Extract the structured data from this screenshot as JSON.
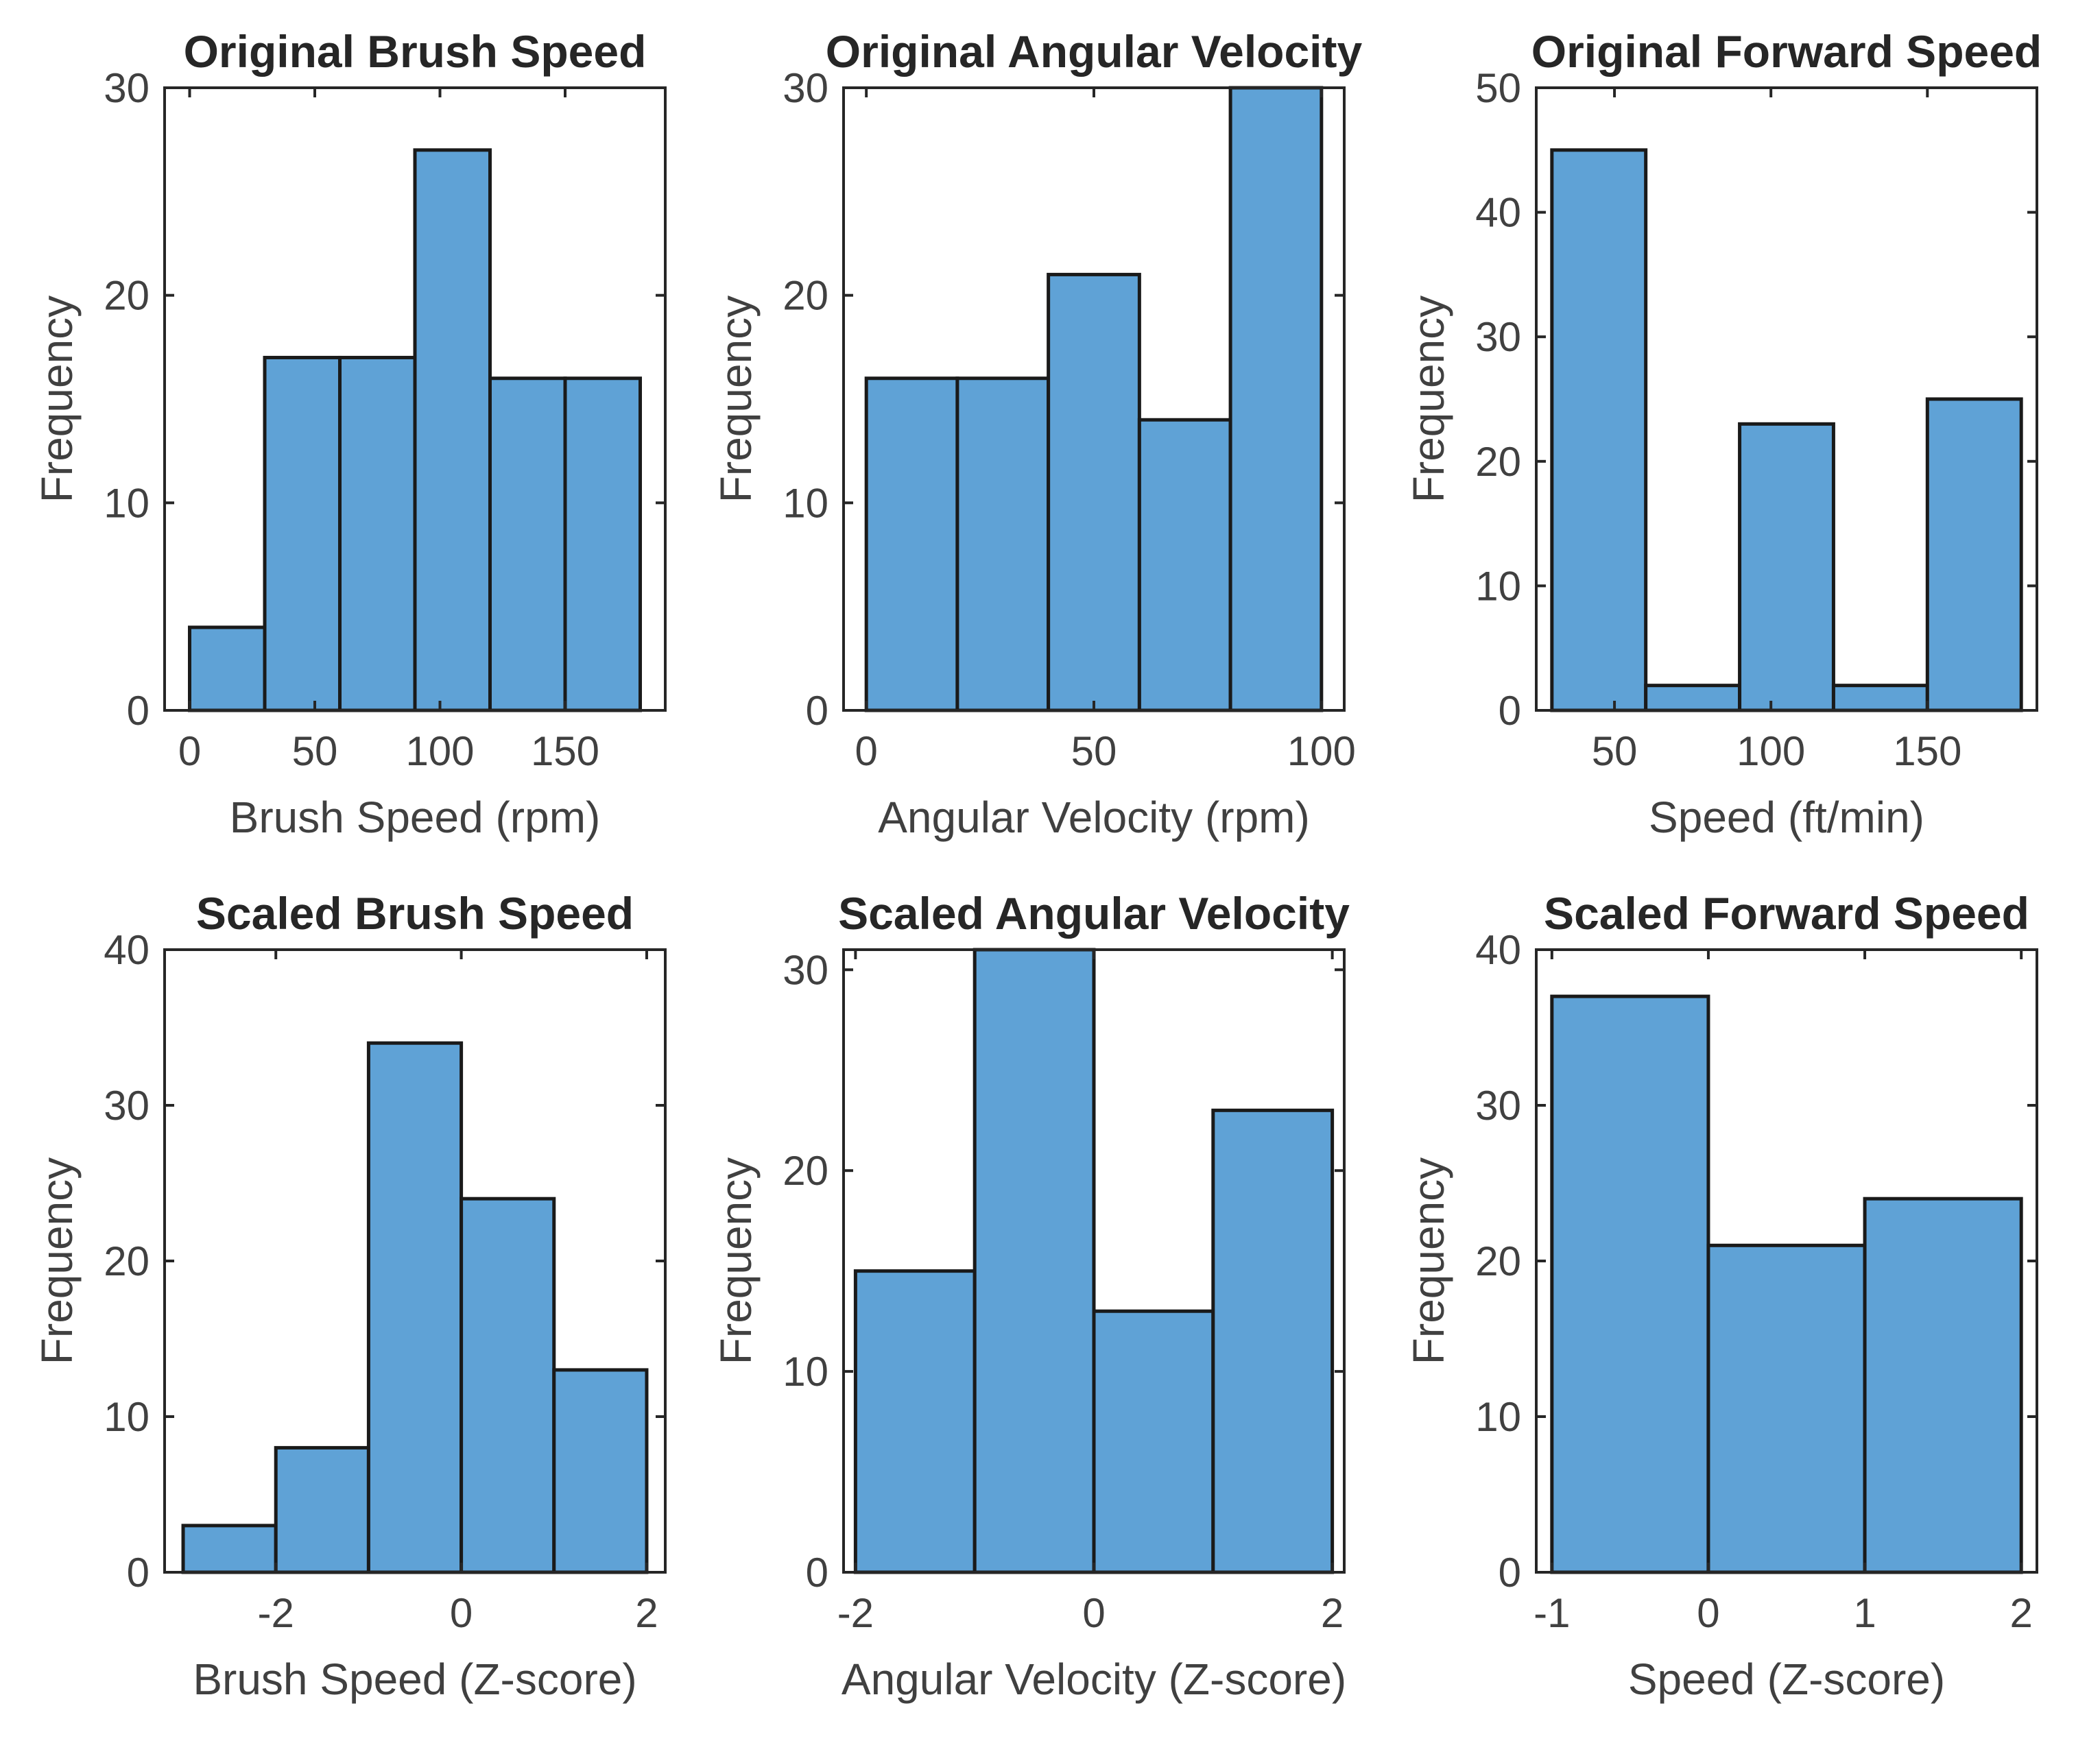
{
  "chart_data": [
    {
      "type": "bar",
      "title": "Original Brush Speed",
      "xlabel": "Brush Speed (rpm)",
      "ylabel": "Frequency",
      "xlim": [
        -10,
        190
      ],
      "ylim": [
        0,
        30
      ],
      "xticks": [
        0,
        50,
        100,
        150
      ],
      "yticks": [
        0,
        10,
        20,
        30
      ],
      "bin_edges": [
        0,
        30,
        60,
        90,
        120,
        150,
        180
      ],
      "values": [
        4,
        17,
        17,
        27,
        16,
        16
      ]
    },
    {
      "type": "bar",
      "title": "Original Angular Velocity",
      "xlabel": "Angular Velocity (rpm)",
      "ylabel": "Frequency",
      "xlim": [
        -5,
        105
      ],
      "ylim": [
        0,
        30
      ],
      "xticks": [
        0,
        50,
        100
      ],
      "yticks": [
        0,
        10,
        20,
        30
      ],
      "bin_edges": [
        0,
        20,
        40,
        60,
        80,
        100
      ],
      "values": [
        16,
        16,
        21,
        14,
        30
      ]
    },
    {
      "type": "bar",
      "title": "Original Forward Speed",
      "xlabel": "Speed (ft/min)",
      "ylabel": "Frequency",
      "xlim": [
        25,
        185
      ],
      "ylim": [
        0,
        50
      ],
      "xticks": [
        50,
        100,
        150
      ],
      "yticks": [
        0,
        10,
        20,
        30,
        40,
        50
      ],
      "bin_edges": [
        30,
        60,
        90,
        120,
        150,
        180
      ],
      "values": [
        45,
        2,
        23,
        2,
        25
      ]
    },
    {
      "type": "bar",
      "title": "Scaled Brush Speed",
      "xlabel": "Brush Speed (Z-score)",
      "ylabel": "Frequency",
      "xlim": [
        -3.2,
        2.2
      ],
      "ylim": [
        0,
        40
      ],
      "xticks": [
        -2,
        0,
        2
      ],
      "yticks": [
        0,
        10,
        20,
        30,
        40
      ],
      "bin_edges": [
        -3,
        -2,
        -1,
        0,
        1,
        2
      ],
      "values": [
        3,
        8,
        34,
        24,
        13
      ]
    },
    {
      "type": "bar",
      "title": "Scaled Angular Velocity",
      "xlabel": "Angular Velocity (Z-score)",
      "ylabel": "Frequency",
      "xlim": [
        -2.1,
        2.1
      ],
      "ylim": [
        0,
        31
      ],
      "xticks": [
        -2,
        0,
        2
      ],
      "yticks": [
        0,
        10,
        20,
        30
      ],
      "bin_edges": [
        -2,
        -1,
        0,
        1,
        2
      ],
      "values": [
        15,
        31,
        13,
        23
      ]
    },
    {
      "type": "bar",
      "title": "Scaled Forward Speed",
      "xlabel": "Speed (Z-score)",
      "ylabel": "Frequency",
      "xlim": [
        -1.1,
        2.1
      ],
      "ylim": [
        0,
        40
      ],
      "xticks": [
        -1,
        0,
        1,
        2
      ],
      "yticks": [
        0,
        10,
        20,
        30,
        40
      ],
      "bin_edges": [
        -1,
        0,
        1,
        2
      ],
      "values": [
        37,
        21,
        24
      ]
    }
  ],
  "colors": {
    "bar_fill": "#5fa2d6",
    "bar_edge": "#1a1a1a",
    "axis": "#262626",
    "text": "#404040"
  }
}
